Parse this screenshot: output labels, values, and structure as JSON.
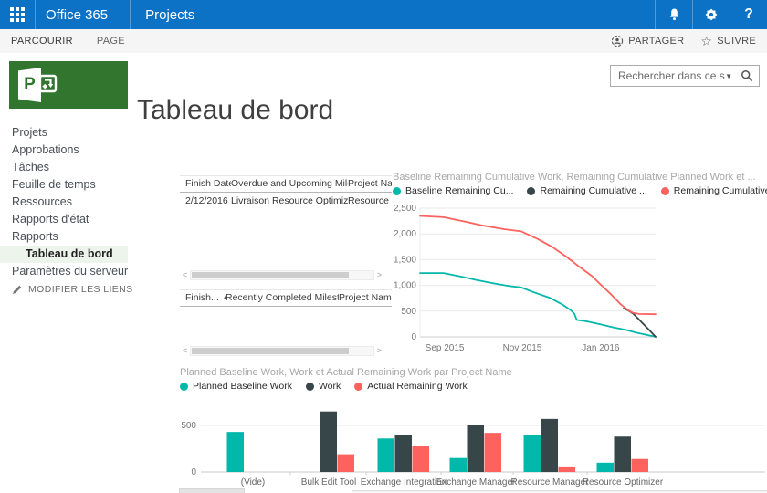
{
  "suite_bar": {
    "brand": "Office 365",
    "app_name": "Projects",
    "help_label": "?"
  },
  "ribbon": {
    "tabs": [
      {
        "label": "PARCOURIR",
        "active": true
      },
      {
        "label": "PAGE",
        "active": false
      }
    ],
    "share_label": "PARTAGER",
    "follow_label": "SUIVRE"
  },
  "search": {
    "placeholder": "Rechercher dans ce site"
  },
  "page_title": "Tableau de bord",
  "logo": {
    "letter": "P"
  },
  "sidebar": {
    "items": [
      {
        "label": "Projets"
      },
      {
        "label": "Approbations"
      },
      {
        "label": "Tâches"
      },
      {
        "label": "Feuille de temps"
      },
      {
        "label": "Ressources"
      },
      {
        "label": "Rapports d'état"
      },
      {
        "label": "Rapports"
      },
      {
        "label": "Tableau de bord",
        "selected": true,
        "indent": true
      },
      {
        "label": "Paramètres du serveur"
      }
    ],
    "edit_links_label": "MODIFIER LES LIENS"
  },
  "milestone_tables": {
    "overdue": {
      "headers": [
        "Finish Date",
        "Overdue and Upcoming Milestone",
        "Project Nam"
      ],
      "rows": [
        [
          "2/12/2016",
          "Livraison Resource Optimizer",
          "Resource Op"
        ]
      ]
    },
    "completed": {
      "headers": [
        "Finish...",
        "Recently Completed Milestones",
        "Project Name"
      ],
      "sorted_header_index": 0,
      "sort_arrow": "▲",
      "rows": []
    }
  },
  "scrollbar": {
    "left_arrow": "<",
    "right_arrow": ">"
  },
  "colors": {
    "suite_blue": "#0b72c6",
    "project_green": "#31752F",
    "nav_selected_bg": "#EDF4EB",
    "series_teal": "#01B8AA",
    "series_dark": "#374649",
    "series_red": "#FD625E"
  },
  "chart_data": [
    {
      "type": "line",
      "title": "Baseline Remaining Cumulative Work, Remaining Cumulative Planned Work et ...",
      "legend_position": "top",
      "grid": true,
      "ylim": [
        0,
        2500
      ],
      "yticks": [
        0,
        500,
        1000,
        1500,
        2000,
        2500
      ],
      "ytick_labels": [
        "0",
        "500",
        "1,000",
        "1,500",
        "2,000",
        "2,500"
      ],
      "xticks": [
        {
          "pos": 0.105,
          "label": "Sep 2015"
        },
        {
          "pos": 0.434,
          "label": "Nov 2015"
        },
        {
          "pos": 0.767,
          "label": "Jan 2016"
        }
      ],
      "series": [
        {
          "name": "Baseline Remaining Cu...",
          "color": "#01B8AA",
          "points": [
            [
              0,
              1240
            ],
            [
              0.1,
              1240
            ],
            [
              0.17,
              1175
            ],
            [
              0.24,
              1105
            ],
            [
              0.31,
              1040
            ],
            [
              0.38,
              985
            ],
            [
              0.43,
              960
            ],
            [
              0.49,
              855
            ],
            [
              0.55,
              760
            ],
            [
              0.6,
              640
            ],
            [
              0.64,
              520
            ],
            [
              0.655,
              450
            ],
            [
              0.665,
              330
            ],
            [
              0.71,
              300
            ],
            [
              0.77,
              240
            ],
            [
              0.82,
              185
            ],
            [
              0.87,
              140
            ],
            [
              0.92,
              80
            ],
            [
              0.97,
              30
            ],
            [
              1,
              5
            ]
          ]
        },
        {
          "name": "Remaining Cumulative ...",
          "color": "#374649",
          "points": [
            [
              0.865,
              555
            ],
            [
              0.885,
              510
            ],
            [
              0.905,
              450
            ],
            [
              0.925,
              360
            ],
            [
              0.945,
              265
            ],
            [
              0.965,
              170
            ],
            [
              0.985,
              75
            ],
            [
              1,
              0
            ]
          ]
        },
        {
          "name": "Remaining Cumulative ...",
          "color": "#FD625E",
          "points": [
            [
              0,
              2350
            ],
            [
              0.1,
              2325
            ],
            [
              0.18,
              2250
            ],
            [
              0.27,
              2160
            ],
            [
              0.36,
              2090
            ],
            [
              0.43,
              2050
            ],
            [
              0.5,
              1900
            ],
            [
              0.56,
              1750
            ],
            [
              0.62,
              1560
            ],
            [
              0.68,
              1350
            ],
            [
              0.73,
              1180
            ],
            [
              0.77,
              1000
            ],
            [
              0.81,
              830
            ],
            [
              0.85,
              640
            ],
            [
              0.88,
              530
            ],
            [
              0.905,
              465
            ],
            [
              0.93,
              445
            ],
            [
              1,
              440
            ]
          ]
        }
      ]
    },
    {
      "type": "bar",
      "title": "Planned Baseline Work, Work et Actual Remaining Work par Project Name",
      "grid": true,
      "ylim": [
        0,
        686
      ],
      "yticks": [
        0,
        500
      ],
      "ytick_labels": [
        "0",
        "500"
      ],
      "categories": [
        "(Vide)",
        "Bulk Edit Tool",
        "Exchange Integration",
        "Exchange Manager",
        "Resource Manager",
        "Resource Optimizer"
      ],
      "series": [
        {
          "name": "Planned Baseline Work",
          "color": "#01B8AA",
          "values": [
            430,
            null,
            360,
            150,
            400,
            100
          ]
        },
        {
          "name": "Work",
          "color": "#374649",
          "values": [
            null,
            650,
            400,
            510,
            570,
            380
          ]
        },
        {
          "name": "Actual Remaining Work",
          "color": "#FD625E",
          "values": [
            null,
            190,
            280,
            420,
            60,
            140
          ]
        }
      ]
    }
  ]
}
